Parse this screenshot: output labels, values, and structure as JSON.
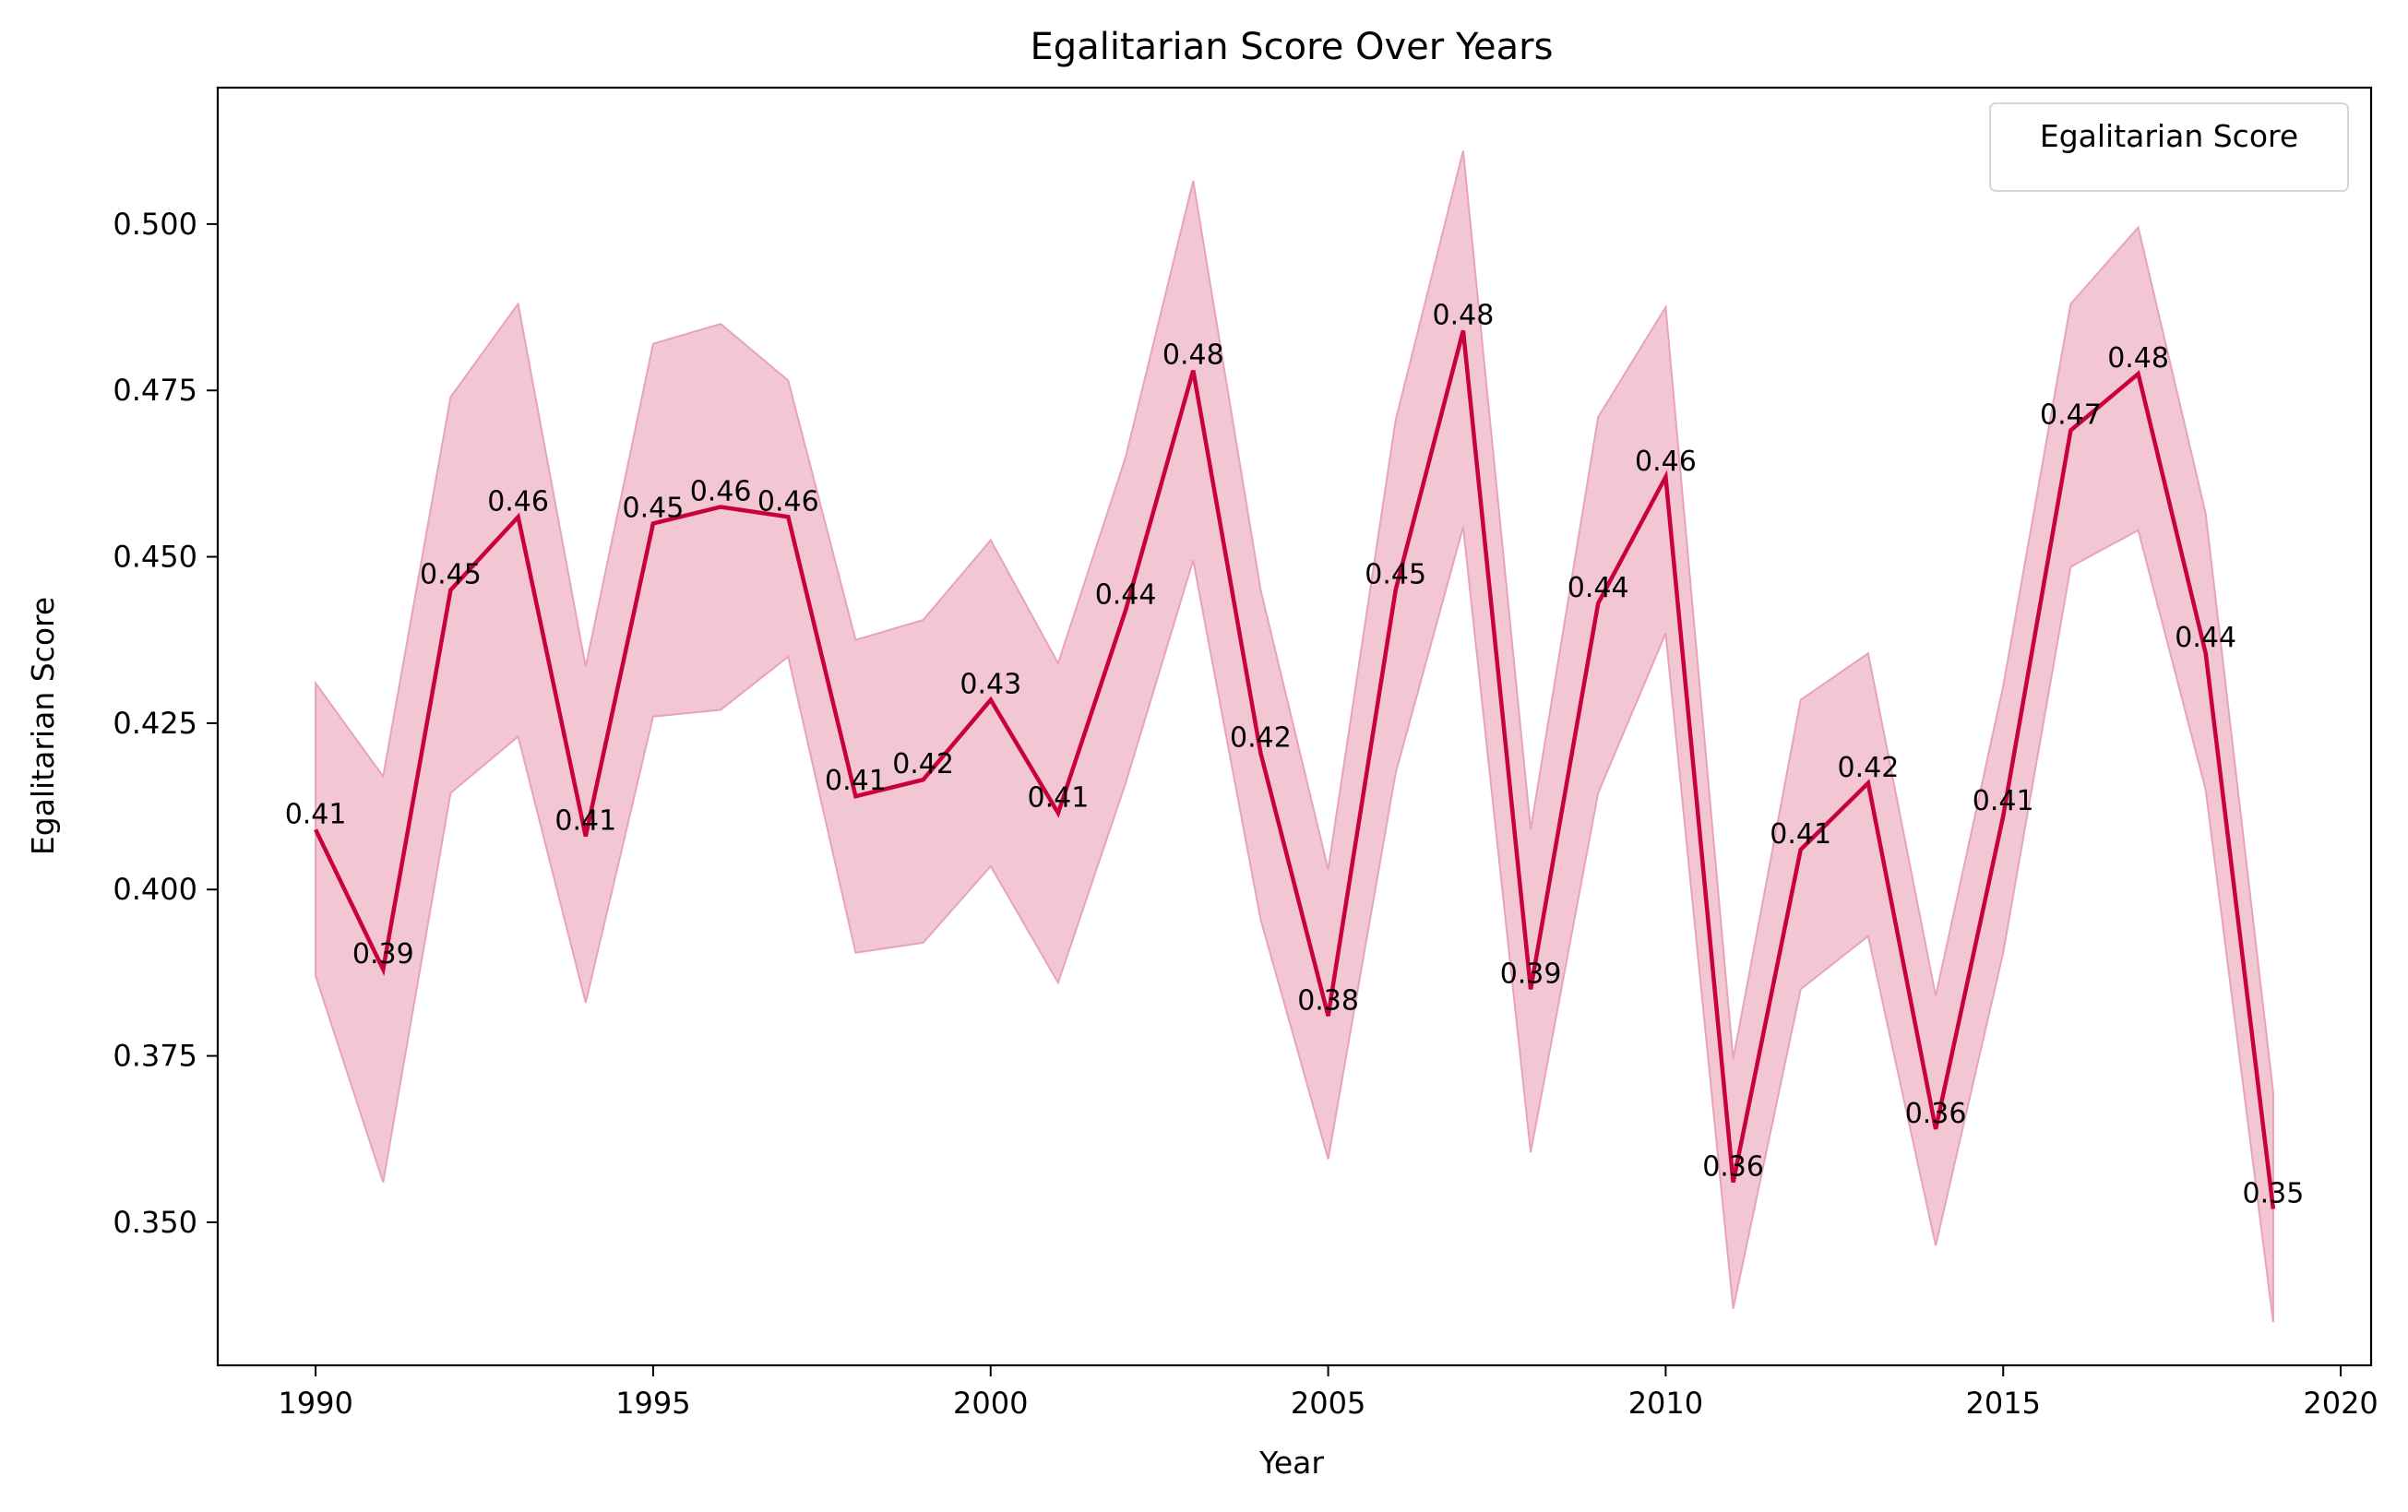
{
  "chart_data": {
    "type": "line",
    "title": "Egalitarian Score Over Years",
    "xlabel": "Year",
    "ylabel": "Egalitarian Score",
    "xlim": [
      1988.55,
      2020.45
    ],
    "ylim": [
      0.3285,
      0.5205
    ],
    "xticks": [
      1990,
      1995,
      2000,
      2005,
      2010,
      2015,
      2020
    ],
    "yticks": [
      0.35,
      0.375,
      0.4,
      0.425,
      0.45,
      0.475,
      0.5
    ],
    "ytick_labels": [
      "0.350",
      "0.375",
      "0.400",
      "0.425",
      "0.450",
      "0.475",
      "0.500"
    ],
    "legend": {
      "placement": "top-right",
      "label": "Egalitarian Score"
    },
    "grid": false,
    "colors": {
      "line": "#c8003c",
      "band_fill": "#f2c6d3",
      "band_edge": "#e8a3b8"
    },
    "series": [
      {
        "name": "Egalitarian Score",
        "x": [
          1990,
          1991,
          1992,
          1993,
          1994,
          1995,
          1996,
          1997,
          1998,
          1999,
          2000,
          2001,
          2002,
          2003,
          2004,
          2005,
          2006,
          2007,
          2008,
          2009,
          2010,
          2011,
          2012,
          2013,
          2014,
          2015,
          2016,
          2017,
          2018,
          2019
        ],
        "values": [
          0.409,
          0.388,
          0.445,
          0.456,
          0.408,
          0.455,
          0.4575,
          0.456,
          0.414,
          0.4165,
          0.4285,
          0.4115,
          0.442,
          0.478,
          0.4205,
          0.381,
          0.445,
          0.484,
          0.385,
          0.443,
          0.462,
          0.356,
          0.406,
          0.416,
          0.364,
          0.411,
          0.469,
          0.4775,
          0.4355,
          0.352
        ],
        "lower": [
          0.387,
          0.356,
          0.4145,
          0.423,
          0.383,
          0.426,
          0.427,
          0.435,
          0.3905,
          0.392,
          0.4035,
          0.386,
          0.416,
          0.4495,
          0.3955,
          0.3595,
          0.4175,
          0.4545,
          0.3605,
          0.4145,
          0.4385,
          0.337,
          0.385,
          0.393,
          0.3465,
          0.3905,
          0.4485,
          0.454,
          0.415,
          0.335
        ],
        "upper": [
          0.431,
          0.417,
          0.474,
          0.488,
          0.4335,
          0.482,
          0.485,
          0.4765,
          0.4375,
          0.4405,
          0.4525,
          0.434,
          0.465,
          0.5065,
          0.445,
          0.403,
          0.4705,
          0.511,
          0.409,
          0.471,
          0.4875,
          0.3745,
          0.4285,
          0.4355,
          0.384,
          0.4305,
          0.488,
          0.4995,
          0.4565,
          0.3695
        ],
        "labels": [
          "0.41",
          "0.39",
          "0.45",
          "0.46",
          "0.41",
          "0.45",
          "0.46",
          "0.46",
          "0.41",
          "0.42",
          "0.43",
          "0.41",
          "0.44",
          "0.48",
          "0.42",
          "0.38",
          "0.45",
          "0.48",
          "0.39",
          "0.44",
          "0.46",
          "0.36",
          "0.41",
          "0.42",
          "0.36",
          "0.41",
          "0.47",
          "0.48",
          "0.44",
          "0.35"
        ]
      }
    ]
  }
}
